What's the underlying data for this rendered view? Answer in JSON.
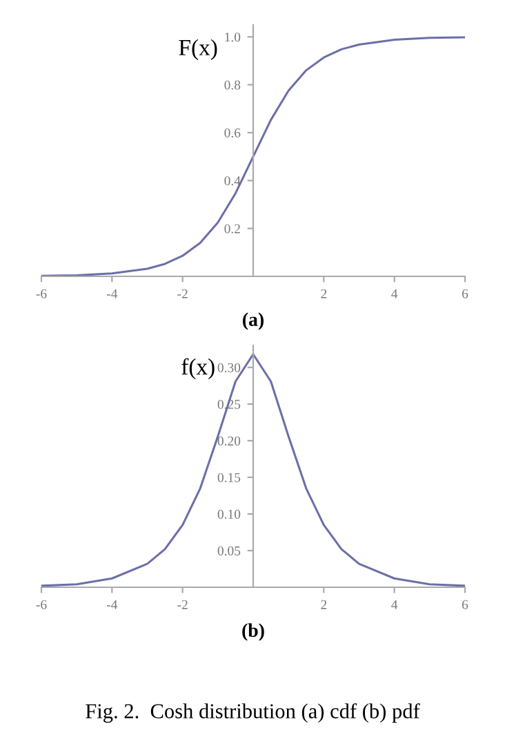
{
  "chart_data": [
    {
      "type": "line",
      "xlabel": "(a)",
      "ylabel": "F(x)",
      "x": [
        -6,
        -5,
        -4,
        -3,
        -2.5,
        -2,
        -1.5,
        -1,
        -0.5,
        0,
        0.5,
        1,
        1.5,
        2,
        2.5,
        3,
        4,
        5,
        6
      ],
      "series": [
        {
          "color": "#6b6fa8",
          "values": [
            0.002,
            0.004,
            0.012,
            0.032,
            0.052,
            0.086,
            0.14,
            0.225,
            0.347,
            0.5,
            0.653,
            0.775,
            0.86,
            0.914,
            0.948,
            0.968,
            0.988,
            0.996,
            0.998
          ]
        }
      ],
      "xlim": [
        -6,
        6
      ],
      "ylim": [
        0,
        1.05
      ],
      "xticks": [
        -6,
        -4,
        -2,
        2,
        4,
        6
      ],
      "yticks": [
        0.2,
        0.4,
        0.6,
        0.8,
        {
          "value": 1.0,
          "label": "1.0"
        }
      ],
      "grid": false,
      "legend": false
    },
    {
      "type": "line",
      "xlabel": "(b)",
      "ylabel": "f(x)",
      "x": [
        -6,
        -5,
        -4,
        -3,
        -2.5,
        -2,
        -1.5,
        -1,
        -0.5,
        0,
        0.5,
        1,
        1.5,
        2,
        2.5,
        3,
        4,
        5,
        6
      ],
      "series": [
        {
          "color": "#6b6fa8",
          "values": [
            0.002,
            0.004,
            0.012,
            0.032,
            0.052,
            0.085,
            0.135,
            0.206,
            0.281,
            0.318,
            0.281,
            0.206,
            0.135,
            0.085,
            0.052,
            0.032,
            0.012,
            0.004,
            0.002
          ]
        }
      ],
      "xlim": [
        -6,
        6
      ],
      "ylim": [
        0,
        0.33
      ],
      "xticks": [
        -6,
        -4,
        -2,
        2,
        4,
        6
      ],
      "yticks": [
        0.05,
        {
          "value": 0.1,
          "label": "0.10"
        },
        0.15,
        {
          "value": 0.2,
          "label": "0.20"
        },
        0.25,
        {
          "value": 0.3,
          "label": "0.30"
        }
      ],
      "grid": false,
      "legend": false,
      "annotations": [
        "Fig. 2.  Cosh distribution (a) cdf (b) pdf"
      ]
    }
  ]
}
